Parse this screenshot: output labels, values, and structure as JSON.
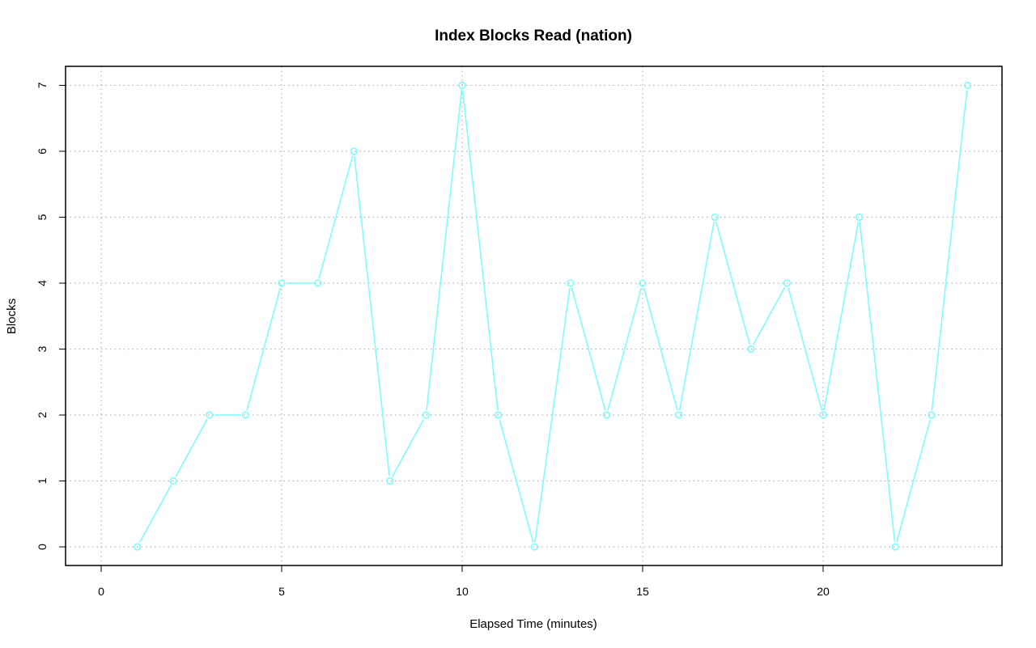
{
  "chart_data": {
    "type": "line",
    "title": "Index Blocks Read (nation)",
    "xlabel": "Elapsed Time (minutes)",
    "ylabel": "Blocks",
    "xlim": [
      0,
      25
    ],
    "ylim": [
      0,
      7
    ],
    "xticks": [
      0,
      5,
      10,
      15,
      20
    ],
    "yticks": [
      0,
      1,
      2,
      3,
      4,
      5,
      6,
      7
    ],
    "grid": true,
    "line_color": "#7ffcfc",
    "marker": "open-circle",
    "series": [
      {
        "x": [
          1,
          2,
          3,
          4,
          5,
          6,
          7,
          8,
          9,
          10,
          11,
          12,
          13,
          14,
          15,
          16,
          17,
          18,
          19,
          20,
          21,
          22,
          23,
          24
        ],
        "values": [
          0,
          1,
          2,
          2,
          4,
          4,
          6,
          1,
          2,
          7,
          2,
          0,
          4,
          2,
          4,
          2,
          5,
          3,
          4,
          2,
          5,
          0,
          2,
          7
        ]
      }
    ]
  }
}
